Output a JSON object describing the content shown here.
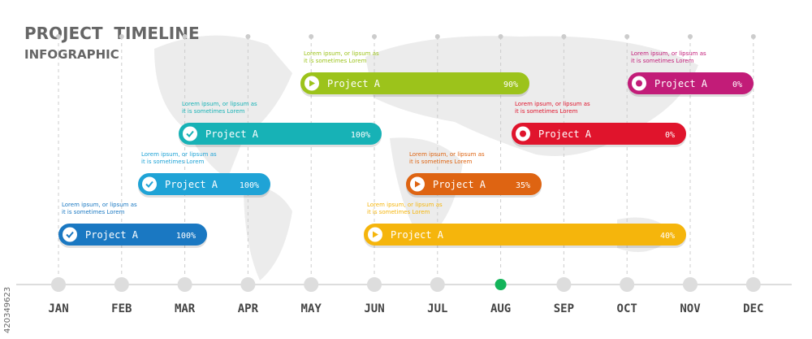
{
  "header": {
    "title": "PROJECT  TIMELINE",
    "subtitle": "INFOGRAPHIC"
  },
  "months": [
    "JAN",
    "FEB",
    "MAR",
    "APR",
    "MAY",
    "JUN",
    "JUL",
    "AUG",
    "SEP",
    "OCT",
    "NOV",
    "DEC"
  ],
  "projects": [
    {
      "label": "Project A",
      "progress": "100%",
      "note": [
        "Lorem ipsum, or lipsum as",
        "it is sometimes Lorem"
      ],
      "color": "#1a78c2",
      "icon": "check"
    },
    {
      "label": "Project A",
      "progress": "100%",
      "note": [
        "Lorem ipsum, or lipsum as",
        "it is sometimes Lorem"
      ],
      "color": "#1fa3d6",
      "icon": "check"
    },
    {
      "label": "Project A",
      "progress": "100%",
      "note": [
        "Lorem ipsum, or lipsum as",
        "it is sometimes Lorem"
      ],
      "color": "#17b2b6",
      "icon": "check"
    },
    {
      "label": "Project A",
      "progress": "90%",
      "note": [
        "Lorem ipsum, or lipsum as",
        "it is sometimes Lorem"
      ],
      "color": "#9cc31b",
      "icon": "play"
    },
    {
      "label": "Project A",
      "progress": "40%",
      "note": [
        "Lorem ipsum, or lipsum as",
        "it is sometimes Lorem"
      ],
      "color": "#f5b50c",
      "icon": "play"
    },
    {
      "label": "Project A",
      "progress": "35%",
      "note": [
        "Lorem ipsum, or lipsum as",
        "it is sometimes Lorem"
      ],
      "color": "#de6412",
      "icon": "play"
    },
    {
      "label": "Project A",
      "progress": "0%",
      "note": [
        "Lorem ipsum, or lipsum as",
        "it is sometimes Lorem"
      ],
      "color": "#e0142c",
      "icon": "stop"
    },
    {
      "label": "Project A",
      "progress": "0%",
      "note": [
        "Lorem ipsum, or lipsum as",
        "it is sometimes Lorem"
      ],
      "color": "#c21c78",
      "icon": "stop"
    }
  ],
  "current_month": "AUG",
  "watermark": "420349623"
}
